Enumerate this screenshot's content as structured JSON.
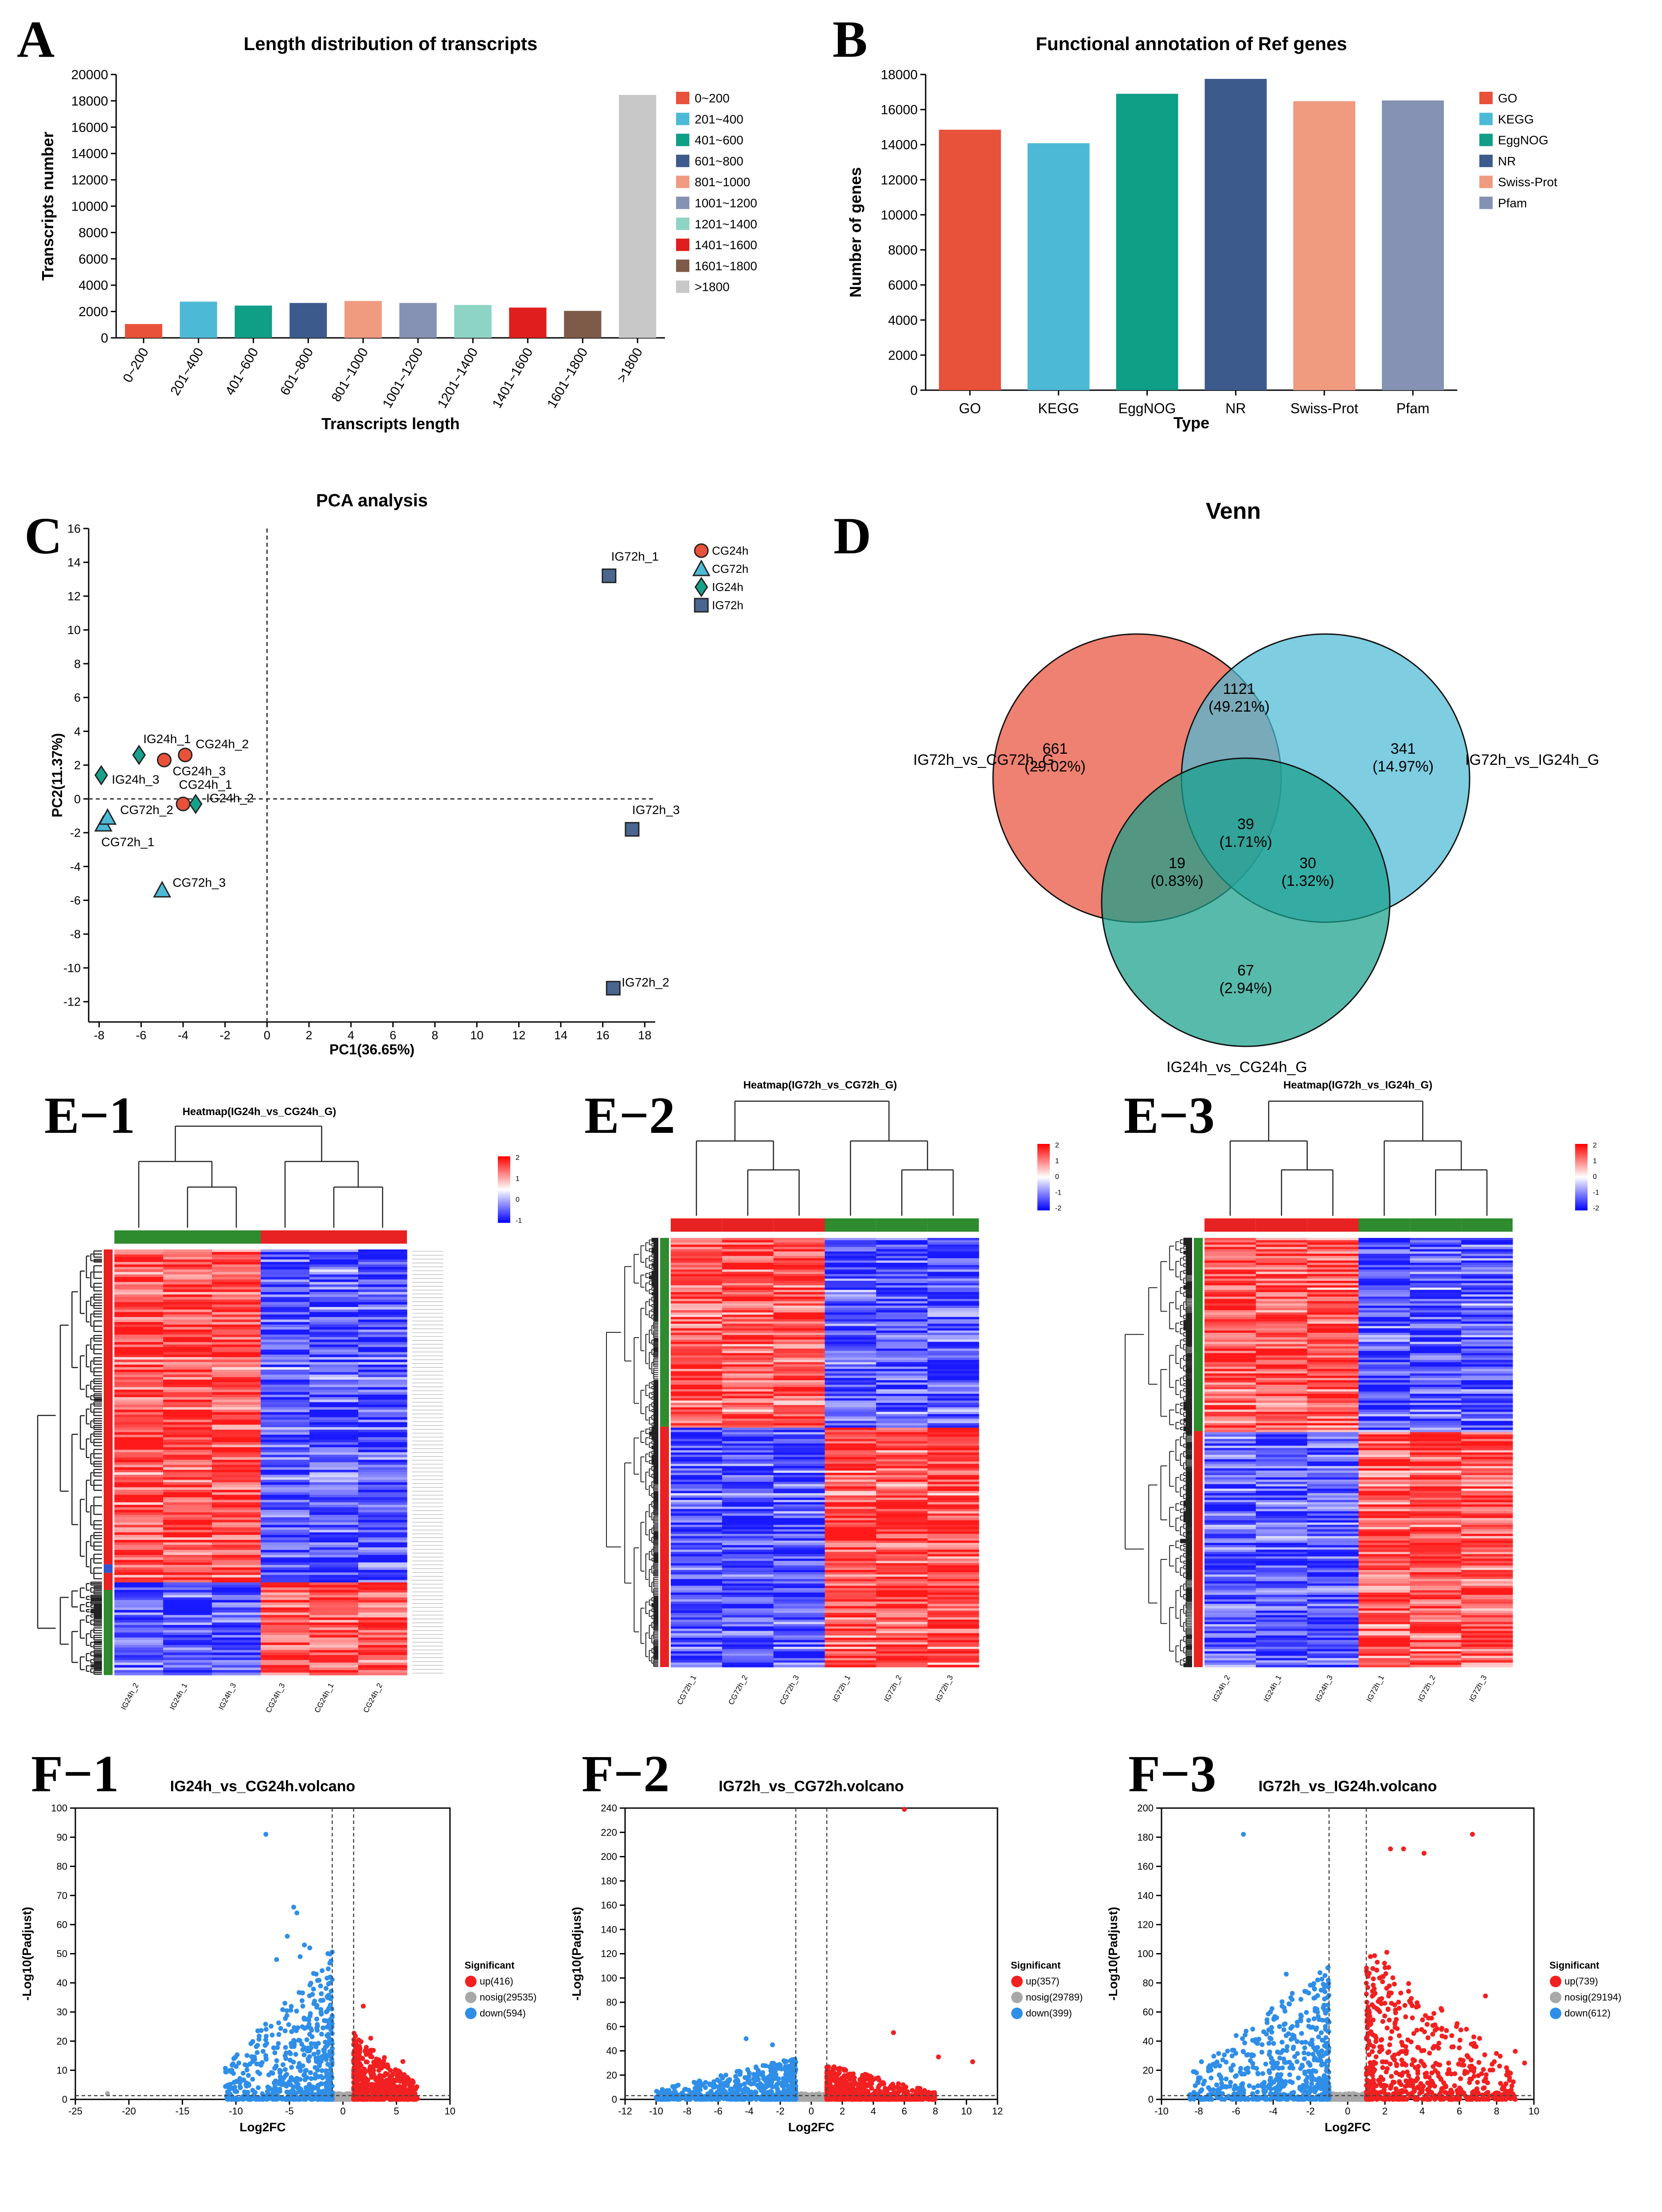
{
  "panels": {
    "A": "A",
    "B": "B",
    "C": "C",
    "D": "D",
    "E1": "E−1",
    "E2": "E−2",
    "E3": "E−3",
    "F1": "F−1",
    "F2": "F−2",
    "F3": "F−3"
  },
  "colors": {
    "red": "#e8513a",
    "up": "#f22020",
    "down": "#2f8ee8",
    "nosig": "#a8a8a8",
    "teal": "#17a08a",
    "navy": "#3c5a8c",
    "lblue": "#4cbad6"
  },
  "chart_data": [
    {
      "id": "A",
      "type": "bar",
      "title": "Length distribution of transcripts",
      "xlabel": "Transcripts length",
      "ylabel": "Transcripts number",
      "categories": [
        "0~200",
        "201~400",
        "401~600",
        "601~800",
        "801~1000",
        "1001~1200",
        "1201~1400",
        "1401~1600",
        "1601~1800",
        ">1800"
      ],
      "values": [
        1050,
        2750,
        2450,
        2650,
        2800,
        2650,
        2500,
        2300,
        2050,
        18450
      ],
      "colors": [
        "#e8513a",
        "#4cbad6",
        "#0f9e86",
        "#3c5a8c",
        "#f09a80",
        "#8592b3",
        "#8ed4c4",
        "#e01e1e",
        "#7d5b48",
        "#c8c8c8"
      ],
      "ylim": [
        0,
        20000
      ],
      "yticks": [
        0,
        2000,
        4000,
        6000,
        8000,
        10000,
        12000,
        14000,
        16000,
        18000,
        20000
      ],
      "legend": "right"
    },
    {
      "id": "B",
      "type": "bar",
      "title": "Functional annotation of Ref genes",
      "xlabel": "Type",
      "ylabel": "Number of genes",
      "categories": [
        "GO",
        "KEGG",
        "EggNOG",
        "NR",
        "Swiss-Prot",
        "Pfam"
      ],
      "values": [
        14850,
        14080,
        16900,
        17750,
        16480,
        16520
      ],
      "colors": [
        "#e8513a",
        "#4cbad6",
        "#0f9e86",
        "#3c5a8c",
        "#f09a80",
        "#8592b3"
      ],
      "ylim": [
        0,
        18000
      ],
      "yticks": [
        0,
        2000,
        4000,
        6000,
        8000,
        10000,
        12000,
        14000,
        16000,
        18000
      ],
      "legend": "right"
    },
    {
      "id": "C",
      "type": "scatter",
      "title": "PCA analysis",
      "xlabel": "PC1(36.65%)",
      "ylabel": "PC2(11.37%)",
      "xlim": [
        -8.5,
        18.5
      ],
      "ylim": [
        -13.2,
        16
      ],
      "xticks": [
        -8,
        -6,
        -4,
        -2,
        0,
        2,
        4,
        6,
        8,
        10,
        12,
        14,
        16,
        18
      ],
      "yticks": [
        -12,
        -10,
        -8,
        -6,
        -4,
        -2,
        0,
        2,
        4,
        6,
        8,
        10,
        12,
        14,
        16
      ],
      "groups": [
        {
          "name": "CG24h",
          "shape": "circle",
          "color": "#e8513a"
        },
        {
          "name": "CG72h",
          "shape": "triangle",
          "color": "#4cbad6"
        },
        {
          "name": "IG24h",
          "shape": "diamond",
          "color": "#17a08a"
        },
        {
          "name": "IG72h",
          "shape": "square",
          "color": "#4a6590"
        }
      ],
      "points": [
        {
          "label": "CG24h_1",
          "group": "CG24h",
          "x": -4.0,
          "y": -0.3,
          "lx": -0.2,
          "ly": 0.9
        },
        {
          "label": "CG24h_2",
          "group": "CG24h",
          "x": -3.9,
          "y": 2.6,
          "lx": 0.5,
          "ly": 0.4
        },
        {
          "label": "CG24h_3",
          "group": "CG24h",
          "x": -4.9,
          "y": 2.3,
          "lx": 0.4,
          "ly": -0.9
        },
        {
          "label": "CG72h_1",
          "group": "CG72h",
          "x": -7.8,
          "y": -1.5,
          "lx": -0.1,
          "ly": -1.3
        },
        {
          "label": "CG72h_2",
          "group": "CG72h",
          "x": -7.6,
          "y": -1.1,
          "lx": 0.6,
          "ly": 0.2
        },
        {
          "label": "CG72h_3",
          "group": "CG72h",
          "x": -5.0,
          "y": -5.4,
          "lx": 0.5,
          "ly": 0.2
        },
        {
          "label": "IG24h_1",
          "group": "IG24h",
          "x": -6.1,
          "y": 2.6,
          "lx": 0.2,
          "ly": 0.7
        },
        {
          "label": "IG24h_2",
          "group": "IG24h",
          "x": -3.4,
          "y": -0.3,
          "lx": 0.5,
          "ly": 0.1
        },
        {
          "label": "IG24h_3",
          "group": "IG24h",
          "x": -7.9,
          "y": 1.4,
          "lx": 0.5,
          "ly": -0.5
        },
        {
          "label": "IG72h_1",
          "group": "IG72h",
          "x": 16.3,
          "y": 13.2,
          "lx": 0.1,
          "ly": 0.9
        },
        {
          "label": "IG72h_2",
          "group": "IG72h",
          "x": 16.5,
          "y": -11.2,
          "lx": 0.4,
          "ly": 0.1
        },
        {
          "label": "IG72h_3",
          "group": "IG72h",
          "x": 17.4,
          "y": -1.8,
          "lx": 0.0,
          "ly": 0.9
        }
      ]
    },
    {
      "id": "D",
      "type": "venn",
      "title": "Venn",
      "sets": [
        {
          "name": "IG72h_vs_CG72h_G",
          "color": "#e8513a"
        },
        {
          "name": "IG72h_vs_IG24h_G",
          "color": "#4cbad6"
        },
        {
          "name": "IG24h_vs_CG24h_G",
          "color": "#17a08a"
        }
      ],
      "regions": [
        {
          "key": "A",
          "count": "661",
          "pct": "(29.02%)"
        },
        {
          "key": "B",
          "count": "341",
          "pct": "(14.97%)"
        },
        {
          "key": "C",
          "count": "67",
          "pct": "(2.94%)"
        },
        {
          "key": "AB",
          "count": "1121",
          "pct": "(49.21%)"
        },
        {
          "key": "AC",
          "count": "19",
          "pct": "(0.83%)"
        },
        {
          "key": "BC",
          "count": "30",
          "pct": "(1.32%)"
        },
        {
          "key": "ABC",
          "count": "39",
          "pct": "(1.71%)"
        }
      ]
    },
    {
      "id": "E1",
      "type": "heatmap",
      "title": "Heatmap(IG24h_vs_CG24h_G)",
      "samples": [
        "IG24h_2",
        "IG24h_1",
        "IG24h_3",
        "CG24h_3",
        "CG24h_1",
        "CG24h_2"
      ],
      "scale": [
        "2",
        "1",
        "0",
        "-1"
      ],
      "group_colors": [
        "#2e8b2e",
        "#e82222"
      ],
      "seed": 11,
      "split": 0.78,
      "side_groups": [
        [
          "#e82222",
          0.74
        ],
        [
          "#3355cc",
          0.02
        ],
        [
          "#e82222",
          0.04
        ],
        [
          "#2e8b2e",
          0.2
        ]
      ],
      "row_labels": true
    },
    {
      "id": "E2",
      "type": "heatmap",
      "title": "Heatmap(IG72h_vs_CG72h_G)",
      "samples": [
        "CG72h_1",
        "CG72h_2",
        "CG72h_3",
        "IG72h_1",
        "IG72h_2",
        "IG72h_3"
      ],
      "scale": [
        "2",
        "1",
        "0",
        "-1",
        "-2"
      ],
      "group_colors": [
        "#e82222",
        "#2e8b2e"
      ],
      "seed": 23,
      "split": 0.44,
      "side_groups": [
        [
          "#2e8b2e",
          0.44
        ],
        [
          "#e82222",
          0.56
        ]
      ],
      "row_labels": false
    },
    {
      "id": "E3",
      "type": "heatmap",
      "title": "Heatmap(IG72h_vs_IG24h_G)",
      "samples": [
        "IG24h_2",
        "IG24h_1",
        "IG24h_3",
        "IG72h_1",
        "IG72h_2",
        "IG72h_3"
      ],
      "scale": [
        "2",
        "1",
        "0",
        "-1",
        "-2"
      ],
      "group_colors": [
        "#e82222",
        "#2e8b2e"
      ],
      "seed": 37,
      "split": 0.45,
      "side_groups": [
        [
          "#2e8b2e",
          0.45
        ],
        [
          "#e82222",
          0.55
        ]
      ],
      "row_labels": false
    },
    {
      "id": "F1",
      "type": "scatter",
      "subtype": "volcano",
      "title": "IG24h_vs_CG24h.volcano",
      "xlabel": "Log2FC",
      "ylabel": "-Log10(Padjust)",
      "xlim": [
        -25,
        10
      ],
      "ylim": [
        0,
        100
      ],
      "xticks": [
        -25,
        -20,
        -15,
        -10,
        -5,
        0,
        5,
        10
      ],
      "yticks": [
        0,
        10,
        20,
        30,
        40,
        50,
        60,
        70,
        80,
        90,
        100
      ],
      "legend_title": "Significant",
      "legend": [
        "up(416)",
        "nosig(29535)",
        "down(594)"
      ],
      "seed": 101,
      "down_extent": [
        -11,
        -1
      ],
      "up_extent": [
        1,
        7
      ],
      "down_peak": 45,
      "up_peak": 20,
      "highlights": [
        {
          "x": -7.2,
          "y": 91,
          "c": "down"
        },
        {
          "x": -4.6,
          "y": 66,
          "c": "down"
        },
        {
          "x": -4.3,
          "y": 64,
          "c": "down"
        },
        {
          "x": -5.2,
          "y": 56,
          "c": "down"
        },
        {
          "x": -3.6,
          "y": 53,
          "c": "down"
        },
        {
          "x": -3.1,
          "y": 52,
          "c": "down"
        },
        {
          "x": -4.0,
          "y": 49,
          "c": "down"
        },
        {
          "x": -6.2,
          "y": 48,
          "c": "down"
        },
        {
          "x": -10.2,
          "y": 14,
          "c": "down"
        },
        {
          "x": 1.9,
          "y": 32,
          "c": "up"
        },
        {
          "x": 2.6,
          "y": 21,
          "c": "up"
        },
        {
          "x": 5.6,
          "y": 13,
          "c": "up"
        },
        {
          "x": -22,
          "y": 2,
          "c": "nosig"
        }
      ]
    },
    {
      "id": "F2",
      "type": "scatter",
      "subtype": "volcano",
      "title": "IG72h_vs_CG72h.volcano",
      "xlabel": "Log2FC",
      "ylabel": "-Log10(Padjust)",
      "xlim": [
        -12,
        12
      ],
      "ylim": [
        0,
        240
      ],
      "xticks": [
        -12,
        -10,
        -8,
        -6,
        -4,
        -2,
        0,
        2,
        4,
        6,
        8,
        10,
        12
      ],
      "yticks": [
        0,
        20,
        40,
        60,
        80,
        100,
        120,
        140,
        160,
        180,
        200,
        220,
        240
      ],
      "legend_title": "Significant",
      "legend": [
        "up(357)",
        "nosig(29789)",
        "down(399)"
      ],
      "seed": 202,
      "down_extent": [
        -10,
        -1
      ],
      "up_extent": [
        1,
        8
      ],
      "down_peak": 30,
      "up_peak": 25,
      "highlights": [
        {
          "x": 6.0,
          "y": 239,
          "c": "up"
        },
        {
          "x": 5.3,
          "y": 55,
          "c": "up"
        },
        {
          "x": 8.2,
          "y": 35,
          "c": "up"
        },
        {
          "x": 10.4,
          "y": 31,
          "c": "up"
        },
        {
          "x": -4.2,
          "y": 50,
          "c": "down"
        },
        {
          "x": -2.5,
          "y": 45,
          "c": "down"
        },
        {
          "x": -9.5,
          "y": 5,
          "c": "down"
        }
      ]
    },
    {
      "id": "F3",
      "type": "scatter",
      "subtype": "volcano",
      "title": "IG72h_vs_IG24h.volcano",
      "xlabel": "Log2FC",
      "ylabel": "-Log10(Padjust)",
      "xlim": [
        -10,
        10
      ],
      "ylim": [
        0,
        200
      ],
      "xticks": [
        -10,
        -8,
        -6,
        -4,
        -2,
        0,
        2,
        4,
        6,
        8,
        10
      ],
      "yticks": [
        0,
        20,
        40,
        60,
        80,
        100,
        120,
        140,
        160,
        180,
        200
      ],
      "legend_title": "Significant",
      "legend": [
        "up(739)",
        "nosig(29194)",
        "down(612)"
      ],
      "seed": 303,
      "down_extent": [
        -8.5,
        -1
      ],
      "up_extent": [
        1,
        9
      ],
      "down_peak": 80,
      "up_peak": 90,
      "highlights": [
        {
          "x": -5.6,
          "y": 182,
          "c": "down"
        },
        {
          "x": 6.7,
          "y": 182,
          "c": "up"
        },
        {
          "x": 2.3,
          "y": 172,
          "c": "up"
        },
        {
          "x": 3.0,
          "y": 172,
          "c": "up"
        },
        {
          "x": 4.1,
          "y": 169,
          "c": "up"
        },
        {
          "x": 2.1,
          "y": 101,
          "c": "up"
        },
        {
          "x": -3.3,
          "y": 86,
          "c": "down"
        },
        {
          "x": 7.4,
          "y": 71,
          "c": "up"
        },
        {
          "x": 9.5,
          "y": 25,
          "c": "up"
        },
        {
          "x": 9.0,
          "y": 33,
          "c": "up"
        }
      ]
    }
  ]
}
